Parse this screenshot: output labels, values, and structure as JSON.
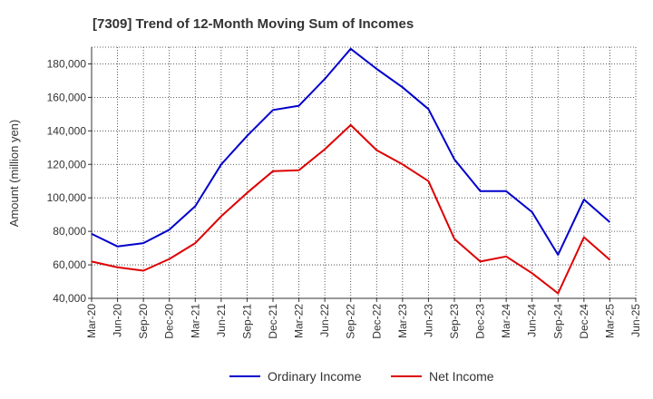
{
  "chart_data": {
    "type": "line",
    "title": "[7309]  Trend of 12-Month Moving Sum of Incomes",
    "xlabel": "",
    "ylabel": "Amount (million yen)",
    "ylim": [
      40000,
      190000
    ],
    "yticks": [
      40000,
      60000,
      80000,
      100000,
      120000,
      140000,
      160000,
      180000
    ],
    "ytick_labels": [
      "40,000",
      "60,000",
      "80,000",
      "100,000",
      "120,000",
      "140,000",
      "160,000",
      "180,000"
    ],
    "categories": [
      "Mar-20",
      "Jun-20",
      "Sep-20",
      "Dec-20",
      "Mar-21",
      "Jun-21",
      "Sep-21",
      "Dec-21",
      "Mar-22",
      "Jun-22",
      "Sep-22",
      "Dec-22",
      "Mar-23",
      "Jun-23",
      "Sep-23",
      "Dec-23",
      "Mar-24",
      "Jun-24",
      "Sep-24",
      "Dec-24",
      "Mar-25",
      "Jun-25"
    ],
    "grid": true,
    "legend_position": "bottom-center",
    "series": [
      {
        "name": "Ordinary Income",
        "color": "#0000cc",
        "values": [
          78500,
          71000,
          73000,
          81000,
          95000,
          120000,
          137000,
          152500,
          155000,
          171000,
          189000,
          177000,
          166000,
          153000,
          123000,
          104000,
          104000,
          91500,
          66000,
          99000,
          85500,
          null
        ]
      },
      {
        "name": "Net Income",
        "color": "#dd0000",
        "values": [
          62000,
          58500,
          56500,
          63500,
          73000,
          89000,
          103000,
          116000,
          116500,
          129000,
          143500,
          128500,
          120000,
          110000,
          75500,
          62000,
          65000,
          55000,
          43000,
          76500,
          63000,
          null
        ]
      }
    ]
  }
}
